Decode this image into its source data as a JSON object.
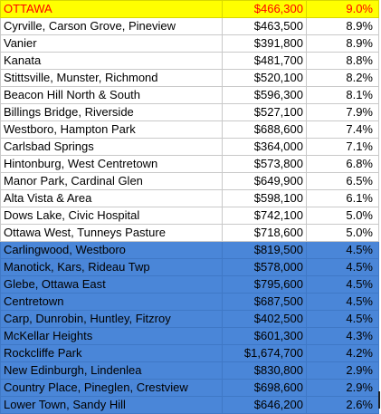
{
  "header": {
    "area": "OTTAWA",
    "price": "$466,300",
    "pct": "9.0%"
  },
  "rows": [
    {
      "area": "Cyrville, Carson Grove, Pineview",
      "price": "$463,500",
      "pct": "8.9%",
      "band": "white"
    },
    {
      "area": "Vanier",
      "price": "$391,800",
      "pct": "8.9%",
      "band": "white"
    },
    {
      "area": "Kanata",
      "price": "$481,700",
      "pct": "8.8%",
      "band": "white"
    },
    {
      "area": "Stittsville, Munster, Richmond",
      "price": "$520,100",
      "pct": "8.2%",
      "band": "white"
    },
    {
      "area": "Beacon Hill North & South",
      "price": "$596,300",
      "pct": "8.1%",
      "band": "white"
    },
    {
      "area": "Billings Bridge, Riverside",
      "price": "$527,100",
      "pct": "7.9%",
      "band": "white"
    },
    {
      "area": "Westboro, Hampton Park",
      "price": "$688,600",
      "pct": "7.4%",
      "band": "white"
    },
    {
      "area": "Carlsbad Springs",
      "price": "$364,000",
      "pct": "7.1%",
      "band": "white"
    },
    {
      "area": "Hintonburg, West Centretown",
      "price": "$573,800",
      "pct": "6.8%",
      "band": "white"
    },
    {
      "area": "Manor Park, Cardinal Glen",
      "price": "$649,900",
      "pct": "6.5%",
      "band": "white"
    },
    {
      "area": "Alta Vista & Area",
      "price": "$598,100",
      "pct": "6.1%",
      "band": "white"
    },
    {
      "area": "Dows Lake, Civic Hospital",
      "price": "$742,100",
      "pct": "5.0%",
      "band": "white"
    },
    {
      "area": "Ottawa West, Tunneys Pasture",
      "price": "$718,600",
      "pct": "5.0%",
      "band": "white"
    },
    {
      "area": "Carlingwood, Westboro",
      "price": "$819,500",
      "pct": "4.5%",
      "band": "blue"
    },
    {
      "area": "Manotick, Kars, Rideau Twp",
      "price": "$578,000",
      "pct": "4.5%",
      "band": "blue"
    },
    {
      "area": "Glebe, Ottawa East",
      "price": "$795,600",
      "pct": "4.5%",
      "band": "blue"
    },
    {
      "area": "Centretown",
      "price": "$687,500",
      "pct": "4.5%",
      "band": "blue"
    },
    {
      "area": "Carp, Dunrobin, Huntley, Fitzroy",
      "price": "$402,500",
      "pct": "4.5%",
      "band": "blue"
    },
    {
      "area": "McKellar Heights",
      "price": "$601,300",
      "pct": "4.3%",
      "band": "blue"
    },
    {
      "area": "Rockcliffe Park",
      "price": "$1,674,700",
      "pct": "4.2%",
      "band": "blue"
    },
    {
      "area": "New Edinburgh, Lindenlea",
      "price": "$830,800",
      "pct": "2.9%",
      "band": "blue"
    },
    {
      "area": "Country Place, Pineglen, Crestview",
      "price": "$698,600",
      "pct": "2.9%",
      "band": "blue"
    },
    {
      "area": "Lower Town, Sandy Hill",
      "price": "$646,200",
      "pct": "2.6%",
      "band": "blue"
    }
  ],
  "colors": {
    "header_fill": "#ffff00",
    "header_text": "#ff0000",
    "blue_band": "#4a86d8"
  }
}
